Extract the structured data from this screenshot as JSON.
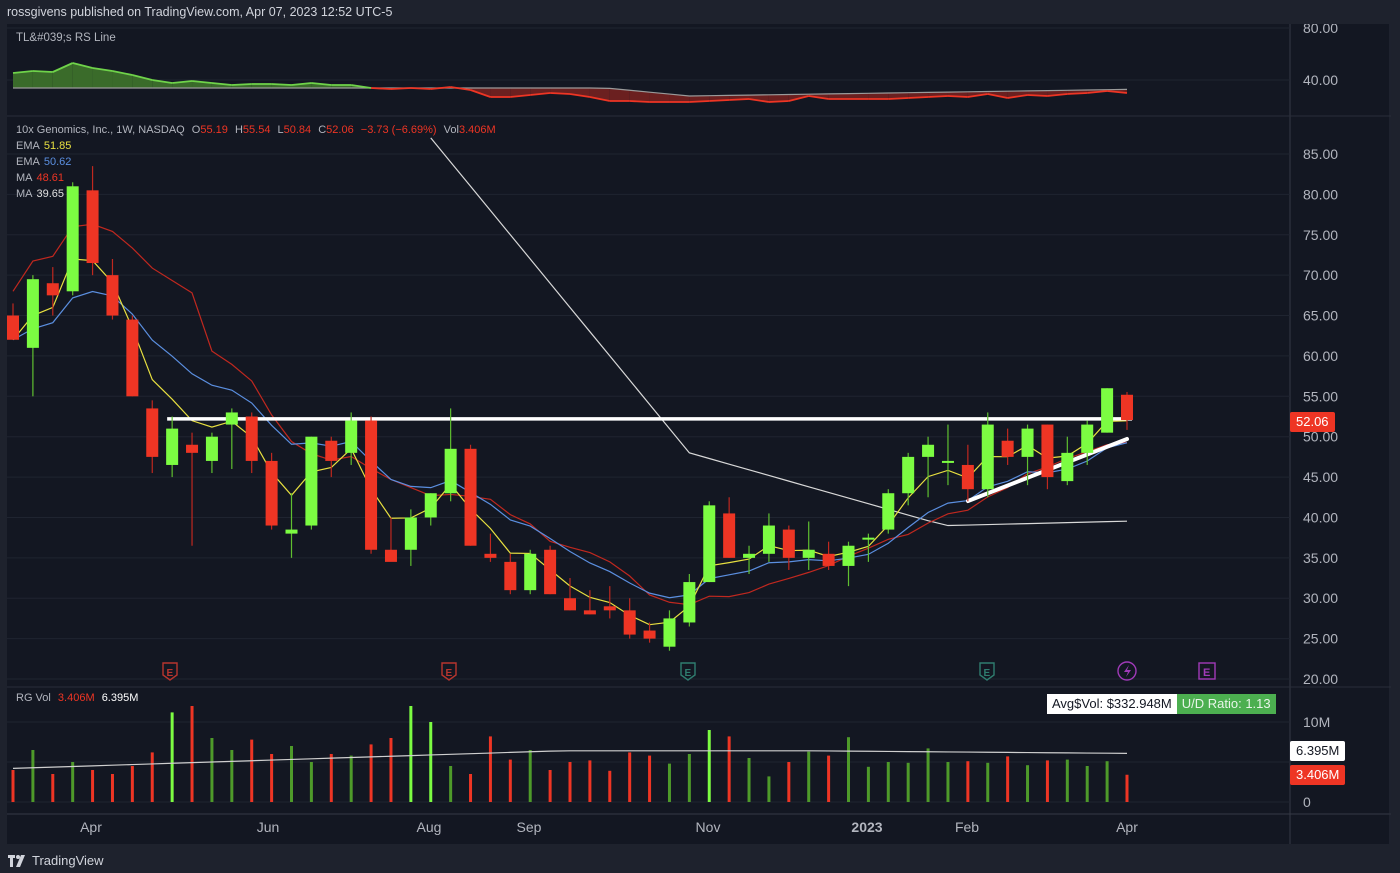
{
  "header": {
    "published": "rossgivens published on TradingView.com, Apr 07, 2023 12:52 UTC-5"
  },
  "rs_pane": {
    "title": "TL&#039;s RS Line",
    "axis_ticks": [
      "80.00",
      "40.00"
    ]
  },
  "price_pane": {
    "symbol": "10x Genomics, Inc., 1W, NASDAQ",
    "ohlc": {
      "o_label": "O",
      "o": "55.19",
      "h_label": "H",
      "h": "55.54",
      "l_label": "L",
      "l": "50.84",
      "c_label": "C",
      "c": "52.06",
      "change": "−3.73 (−6.69%)",
      "vol_label": "Vol",
      "vol": "3.406M"
    },
    "indicators": [
      {
        "name": "EMA",
        "value": "51.85",
        "color": "#e8e040"
      },
      {
        "name": "EMA",
        "value": "50.62",
        "color": "#5b8fe0"
      },
      {
        "name": "MA",
        "value": "48.61",
        "color": "#d0312d"
      },
      {
        "name": "MA",
        "value": "39.65",
        "color": "#e0e0e0"
      }
    ],
    "last_price": "52.06",
    "axis_ticks": [
      "85.00",
      "80.00",
      "75.00",
      "70.00",
      "65.00",
      "60.00",
      "55.00",
      "50.00",
      "45.00",
      "40.00",
      "35.00",
      "30.00",
      "25.00",
      "20.00"
    ]
  },
  "volume_pane": {
    "title": "RG Vol",
    "vol_value": "3.406M",
    "avg_value": "6.395M",
    "avg_dollar_vol": "Avg$Vol: $332.948M",
    "ud_ratio": "U/D Ratio: 1.13",
    "axis_ticks": [
      "10M",
      "0"
    ],
    "avg_badge": "6.395M",
    "vol_badge": "3.406M"
  },
  "time_axis": [
    "Apr",
    "Jun",
    "Aug",
    "Sep",
    "Nov",
    "2023",
    "Feb",
    "Apr"
  ],
  "footer": {
    "brand": "TradingView"
  },
  "colors": {
    "up": "#7cfc42",
    "down": "#ee3524",
    "up_vol": "#4e9a2a",
    "up_vol_bright": "#7cfc42",
    "bg": "#131722"
  },
  "chart_data": {
    "type": "candlestick",
    "title": "10x Genomics, Inc., 1W, NASDAQ",
    "ylim": [
      20,
      87
    ],
    "x_ticks": [
      "Apr",
      "Jun",
      "Aug",
      "Sep",
      "Nov",
      "2023",
      "Feb",
      "Apr"
    ],
    "candles": [
      {
        "o": 65.0,
        "h": 66.5,
        "l": 62.0,
        "c": 62.0
      },
      {
        "o": 61.0,
        "h": 70.0,
        "l": 55.0,
        "c": 69.5
      },
      {
        "o": 69.0,
        "h": 71.0,
        "l": 65.0,
        "c": 67.5
      },
      {
        "o": 68.0,
        "h": 81.5,
        "l": 67.5,
        "c": 81.0
      },
      {
        "o": 80.5,
        "h": 83.5,
        "l": 70.0,
        "c": 71.5
      },
      {
        "o": 70.0,
        "h": 72.0,
        "l": 64.5,
        "c": 65.0
      },
      {
        "o": 64.5,
        "h": 65.0,
        "l": 55.0,
        "c": 55.0
      },
      {
        "o": 53.5,
        "h": 54.5,
        "l": 45.5,
        "c": 47.5
      },
      {
        "o": 46.5,
        "h": 52.5,
        "l": 45.0,
        "c": 51.0
      },
      {
        "o": 49.0,
        "h": 50.5,
        "l": 36.5,
        "c": 48.0
      },
      {
        "o": 47.0,
        "h": 50.5,
        "l": 45.5,
        "c": 50.0
      },
      {
        "o": 51.5,
        "h": 53.5,
        "l": 46.0,
        "c": 53.0
      },
      {
        "o": 52.5,
        "h": 53.0,
        "l": 45.5,
        "c": 47.0
      },
      {
        "o": 47.0,
        "h": 48.0,
        "l": 38.5,
        "c": 39.0
      },
      {
        "o": 38.0,
        "h": 43.0,
        "l": 35.0,
        "c": 38.5
      },
      {
        "o": 39.0,
        "h": 50.0,
        "l": 38.5,
        "c": 50.0
      },
      {
        "o": 49.5,
        "h": 50.0,
        "l": 45.0,
        "c": 47.0
      },
      {
        "o": 48.0,
        "h": 53.0,
        "l": 46.5,
        "c": 52.0
      },
      {
        "o": 52.0,
        "h": 52.5,
        "l": 35.5,
        "c": 36.0
      },
      {
        "o": 36.0,
        "h": 40.0,
        "l": 35.0,
        "c": 34.5
      },
      {
        "o": 36.0,
        "h": 41.0,
        "l": 34.0,
        "c": 40.0
      },
      {
        "o": 40.0,
        "h": 43.0,
        "l": 39.0,
        "c": 43.0
      },
      {
        "o": 43.0,
        "h": 53.5,
        "l": 42.0,
        "c": 48.5
      },
      {
        "o": 48.5,
        "h": 49.0,
        "l": 36.5,
        "c": 36.5
      },
      {
        "o": 35.5,
        "h": 38.0,
        "l": 34.5,
        "c": 35.0
      },
      {
        "o": 34.5,
        "h": 35.5,
        "l": 30.5,
        "c": 31.0
      },
      {
        "o": 31.0,
        "h": 36.0,
        "l": 30.5,
        "c": 35.5
      },
      {
        "o": 36.0,
        "h": 36.5,
        "l": 30.5,
        "c": 30.5
      },
      {
        "o": 30.0,
        "h": 32.5,
        "l": 28.5,
        "c": 28.5
      },
      {
        "o": 28.5,
        "h": 31.0,
        "l": 28.0,
        "c": 28.0
      },
      {
        "o": 29.0,
        "h": 31.5,
        "l": 27.5,
        "c": 28.5
      },
      {
        "o": 28.5,
        "h": 30.0,
        "l": 25.0,
        "c": 25.5
      },
      {
        "o": 26.0,
        "h": 27.0,
        "l": 24.5,
        "c": 25.0
      },
      {
        "o": 24.0,
        "h": 28.5,
        "l": 23.5,
        "c": 27.5
      },
      {
        "o": 27.0,
        "h": 33.0,
        "l": 26.5,
        "c": 32.0
      },
      {
        "o": 32.0,
        "h": 42.0,
        "l": 32.0,
        "c": 41.5
      },
      {
        "o": 40.5,
        "h": 42.5,
        "l": 35.0,
        "c": 35.0
      },
      {
        "o": 35.0,
        "h": 36.5,
        "l": 33.0,
        "c": 35.5
      },
      {
        "o": 35.5,
        "h": 40.5,
        "l": 34.5,
        "c": 39.0
      },
      {
        "o": 38.5,
        "h": 39.0,
        "l": 33.5,
        "c": 35.0
      },
      {
        "o": 35.0,
        "h": 39.5,
        "l": 33.5,
        "c": 36.0
      },
      {
        "o": 35.5,
        "h": 37.0,
        "l": 33.5,
        "c": 34.0
      },
      {
        "o": 34.0,
        "h": 37.0,
        "l": 31.5,
        "c": 36.5
      },
      {
        "o": 37.5,
        "h": 38.0,
        "l": 34.5,
        "c": 37.5
      },
      {
        "o": 38.5,
        "h": 43.5,
        "l": 38.0,
        "c": 43.0
      },
      {
        "o": 43.0,
        "h": 48.0,
        "l": 41.5,
        "c": 47.5
      },
      {
        "o": 47.5,
        "h": 50.0,
        "l": 42.5,
        "c": 49.0
      },
      {
        "o": 47.0,
        "h": 51.5,
        "l": 44.0,
        "c": 47.0
      },
      {
        "o": 46.5,
        "h": 49.0,
        "l": 42.0,
        "c": 43.5
      },
      {
        "o": 43.5,
        "h": 53.0,
        "l": 42.5,
        "c": 51.5
      },
      {
        "o": 49.5,
        "h": 51.0,
        "l": 46.5,
        "c": 47.5
      },
      {
        "o": 47.5,
        "h": 51.5,
        "l": 44.0,
        "c": 51.0
      },
      {
        "o": 51.5,
        "h": 51.5,
        "l": 43.5,
        "c": 45.0
      },
      {
        "o": 44.5,
        "h": 50.0,
        "l": 44.0,
        "c": 48.0
      },
      {
        "o": 48.0,
        "h": 52.0,
        "l": 46.5,
        "c": 51.5
      },
      {
        "o": 50.5,
        "h": 56.0,
        "l": 50.5,
        "c": 56.0
      },
      {
        "o": 55.19,
        "h": 55.54,
        "l": 50.84,
        "c": 52.06
      }
    ],
    "volume_M": [
      4.0,
      6.5,
      3.5,
      5.0,
      4.0,
      3.5,
      4.5,
      6.2,
      11.2,
      12.0,
      8.0,
      6.5,
      7.8,
      6.0,
      7.0,
      5.0,
      6.0,
      5.8,
      7.2,
      8.0,
      12.0,
      10.0,
      4.5,
      3.5,
      8.2,
      5.3,
      6.5,
      4.0,
      5.0,
      5.2,
      3.9,
      6.2,
      5.8,
      4.8,
      6.0,
      9.0,
      8.2,
      5.5,
      3.2,
      5.0,
      6.3,
      5.8,
      8.1,
      4.4,
      5.0,
      4.9,
      6.7,
      5.0,
      5.1,
      4.9,
      5.7,
      4.6,
      5.2,
      5.3,
      4.5,
      5.1,
      3.406
    ],
    "horizontal_resistance": 52.2,
    "rising_trendline": [
      [
        49,
        44.0
      ],
      [
        56,
        49.5
      ]
    ],
    "legend": [
      "EMA 51.85",
      "EMA 50.62",
      "MA 48.61",
      "MA 39.65"
    ],
    "volume_avg": "6.395M",
    "earnings_markers": [
      "E",
      "E",
      "E",
      "E",
      "lightning",
      "E"
    ]
  }
}
